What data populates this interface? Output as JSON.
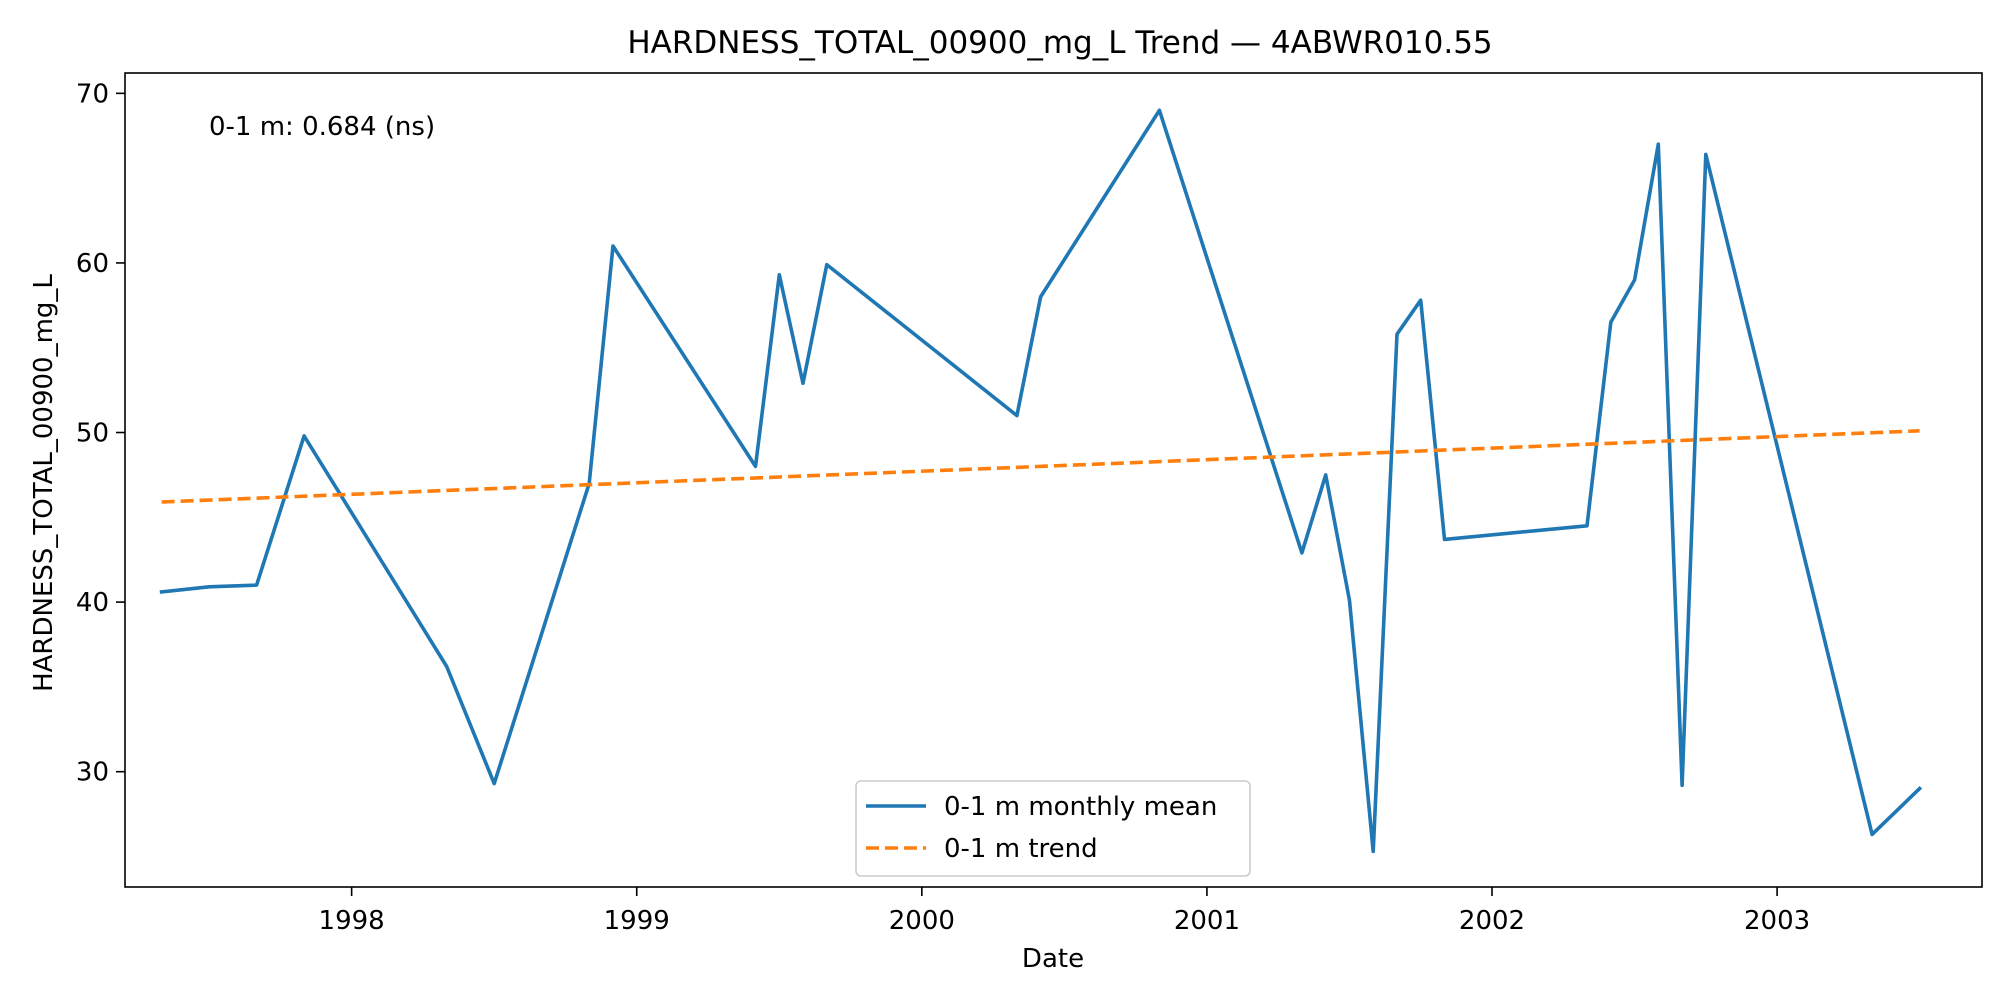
{
  "chart_data": {
    "type": "line",
    "title": "HARDNESS_TOTAL_00900_mg_L Trend — 4ABWR010.55",
    "xlabel": "Date",
    "ylabel": "HARDNESS_TOTAL_00900_mg_L",
    "x_ticks": [
      "1998",
      "1999",
      "2000",
      "2001",
      "2002",
      "2003"
    ],
    "y_ticks": [
      30,
      40,
      50,
      60,
      70
    ],
    "xlim": [
      "1997-03-15",
      "2003-09-20"
    ],
    "ylim": [
      23.2,
      71.2
    ],
    "grid": false,
    "legend_placement": "lower center",
    "annotation": "0-1 m: 0.684 (ns)",
    "series": [
      {
        "name": "0-1 m monthly mean",
        "color": "#1f77b4",
        "style": "solid",
        "points": [
          [
            "1997-05-01",
            40.6
          ],
          [
            "1997-07-01",
            40.9
          ],
          [
            "1997-09-01",
            41.0
          ],
          [
            "1997-11-01",
            49.8
          ],
          [
            "1998-05-01",
            36.2
          ],
          [
            "1998-07-01",
            29.3
          ],
          [
            "1998-11-01",
            47.0
          ],
          [
            "1998-12-01",
            61.0
          ],
          [
            "1999-06-01",
            48.0
          ],
          [
            "1999-07-01",
            59.3
          ],
          [
            "1999-08-01",
            52.9
          ],
          [
            "1999-09-01",
            59.9
          ],
          [
            "2000-05-01",
            51.0
          ],
          [
            "2000-06-01",
            58.0
          ],
          [
            "2000-11-01",
            69.0
          ],
          [
            "2001-05-01",
            42.9
          ],
          [
            "2001-06-01",
            47.5
          ],
          [
            "2001-07-01",
            40.1
          ],
          [
            "2001-08-01",
            25.3
          ],
          [
            "2001-09-01",
            55.8
          ],
          [
            "2001-10-01",
            57.8
          ],
          [
            "2001-11-01",
            43.7
          ],
          [
            "2002-05-01",
            44.5
          ],
          [
            "2002-06-01",
            56.5
          ],
          [
            "2002-07-01",
            59.0
          ],
          [
            "2002-08-01",
            67.0
          ],
          [
            "2002-09-01",
            29.2
          ],
          [
            "2002-10-01",
            66.4
          ],
          [
            "2003-05-01",
            26.3
          ],
          [
            "2003-07-01",
            29.0
          ]
        ]
      },
      {
        "name": "0-1 m trend",
        "color": "#ff7f0e",
        "style": "dashed",
        "points": [
          [
            "1997-05-01",
            45.9
          ],
          [
            "2003-07-01",
            50.1
          ]
        ]
      }
    ]
  }
}
